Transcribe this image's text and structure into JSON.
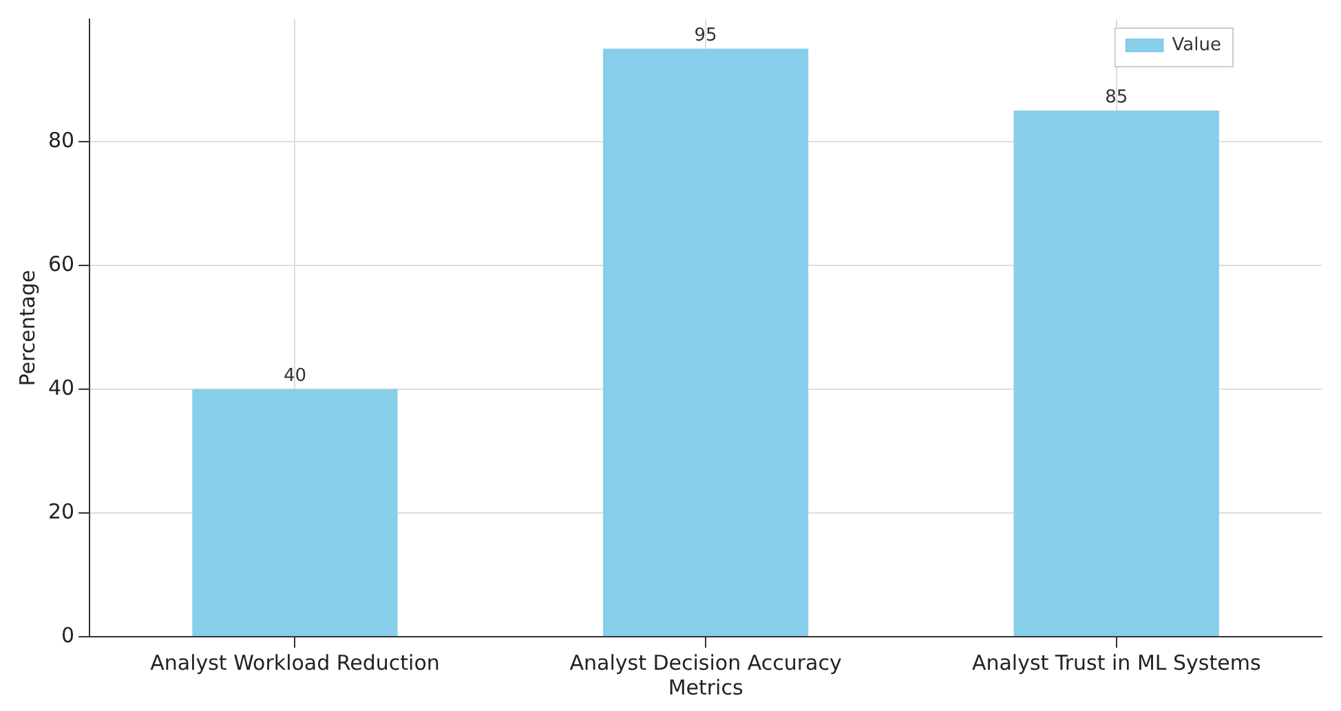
{
  "chart_data": {
    "type": "bar",
    "ylabel": "Percentage",
    "xlabel": null,
    "categories": [
      "Analyst Workload Reduction",
      "Analyst Decision Accuracy Metrics",
      "Analyst Trust in ML Systems"
    ],
    "series": [
      {
        "name": "Value",
        "color": "#87ceeb",
        "values": [
          40,
          95,
          85
        ]
      }
    ],
    "ylim": [
      0,
      99.75
    ],
    "yticks": [
      0,
      20,
      40,
      60,
      80
    ],
    "grid": true,
    "legend": "top right",
    "data_labels": true
  }
}
